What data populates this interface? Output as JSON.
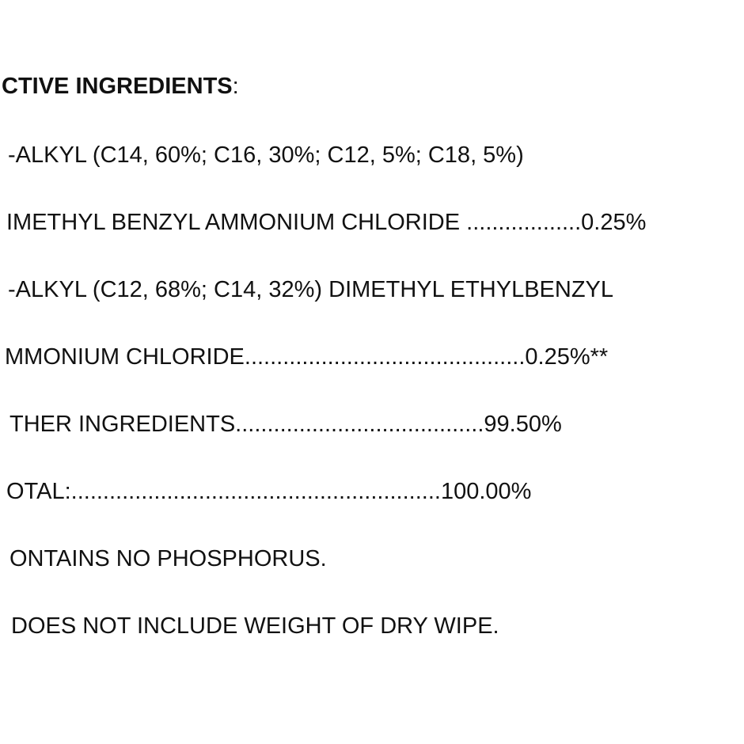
{
  "document": {
    "heading": "CTIVE INGREDIENTS",
    "heading_suffix": ":",
    "lines": [
      "-ALKYL (C14, 60%; C16, 30%; C12, 5%; C18, 5%)",
      "IMETHYL BENZYL AMMONIUM CHLORIDE ..................0.25%",
      "-ALKYL (C12, 68%; C14, 32%) DIMETHYL ETHYLBENZYL",
      "MMONIUM CHLORIDE............................................0.25%**",
      "THER INGREDIENTS.......................................99.50%",
      "OTAL:..........................................................100.00%",
      "ONTAINS NO PHOSPHORUS.",
      "DOES NOT INCLUDE WEIGHT OF DRY WIPE."
    ]
  }
}
